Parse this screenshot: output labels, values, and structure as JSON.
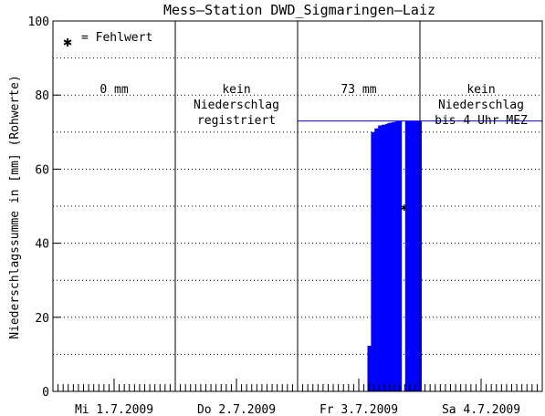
{
  "chart_data": {
    "type": "area",
    "title": "Mess–Station DWD_Sigmaringen–Laiz",
    "ylabel": "Niederschlagssumme in [mm] (Rohwerte)",
    "xlabel": "",
    "ylim": [
      0,
      100
    ],
    "yticks": [
      0,
      20,
      40,
      60,
      80,
      100
    ],
    "grid": "dotted horizontal",
    "legend": {
      "symbol": "✱",
      "text": "= Fehlwert",
      "position": "top-left"
    },
    "days": [
      "Mi 1.7.2009",
      "Do 2.7.2009",
      "Fr 3.7.2009",
      "Sa 4.7.2009"
    ],
    "xrange_hours": [
      0,
      96
    ],
    "day_annotations": [
      {
        "day": 0,
        "lines": [
          "0 mm"
        ]
      },
      {
        "day": 1,
        "lines": [
          "kein",
          "Niederschlag",
          "registriert"
        ]
      },
      {
        "day": 2,
        "lines": [
          "73 mm"
        ]
      },
      {
        "day": 3,
        "lines": [
          "kein",
          "Niederschlag",
          "bis 4 Uhr MEZ"
        ]
      }
    ],
    "series": [
      {
        "color": "#0000ff",
        "hours": [
          61.7,
          62.1,
          62.4,
          62.8,
          63.1,
          63.5,
          63.8,
          64.2,
          64.5,
          64.9,
          65.2,
          65.6,
          65.9,
          66.3,
          66.6,
          67.0,
          67.3,
          67.7,
          68.0,
          68.4,
          68.7,
          69.1,
          69.4,
          69.8,
          70.1,
          70.5,
          70.8,
          71.2,
          71.5,
          71.9
        ],
        "values": [
          12.3,
          12.3,
          70.0,
          70.0,
          71.0,
          71.0,
          71.8,
          71.8,
          72.0,
          72.0,
          72.2,
          72.4,
          72.5,
          72.6,
          72.7,
          72.8,
          73.0,
          73.0,
          73.0,
          0,
          0,
          73.0,
          73.0,
          73.0,
          73.0,
          73.0,
          73.0,
          73.0,
          73.0,
          73.0
        ]
      }
    ],
    "reference_line": {
      "color": "#0000ff",
      "value": 73.0,
      "from_hour": 48,
      "to_hour": 96
    },
    "missing_values": [
      {
        "hour": 68.7,
        "value": 50
      }
    ]
  }
}
